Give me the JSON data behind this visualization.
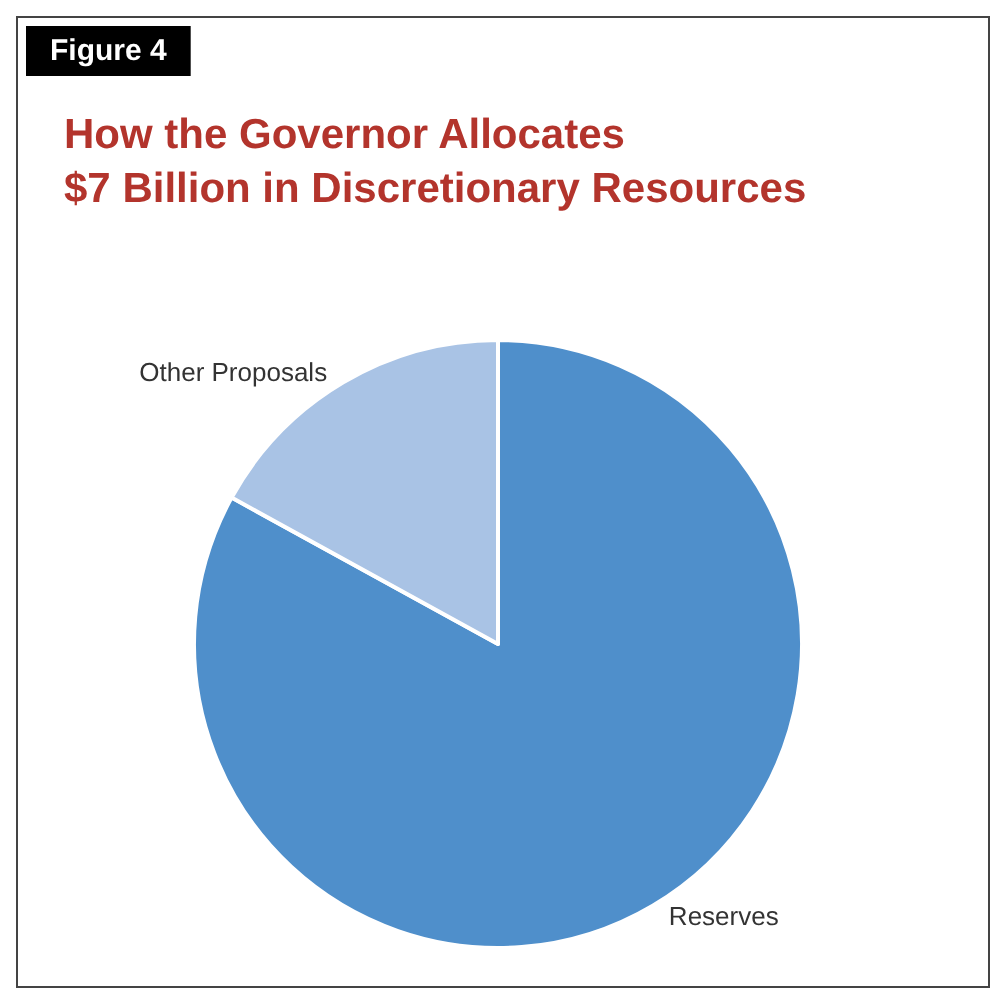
{
  "chart_data": {
    "type": "pie",
    "title": "How the Governor Allocates\n$7 Billion in Discretionary Resources",
    "annotations": [
      "Figure 4"
    ],
    "categories": [
      "Reserves",
      "Other Proposals"
    ],
    "values": [
      83,
      17
    ],
    "colors": [
      "#4f8fcb",
      "#a9c3e5"
    ],
    "legend": false
  }
}
